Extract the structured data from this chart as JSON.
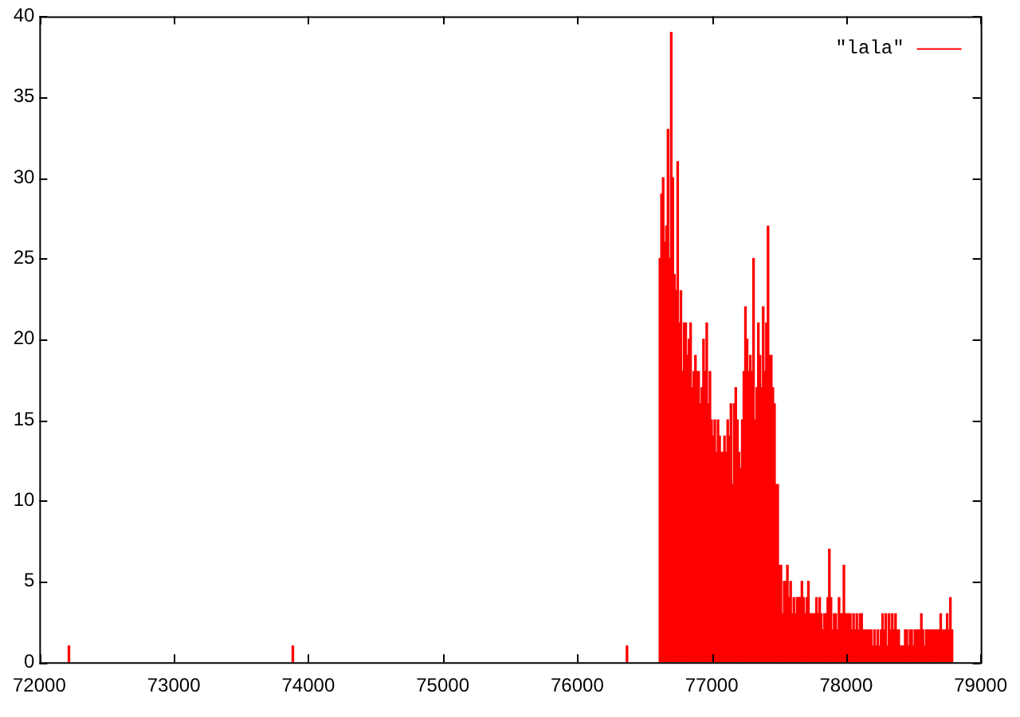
{
  "chart_data": {
    "type": "bar",
    "legend": "top right",
    "grid": false,
    "xlim": [
      72000,
      79000
    ],
    "xticks": [
      72000,
      73000,
      74000,
      75000,
      76000,
      77000,
      78000,
      79000
    ],
    "ylim": [
      0,
      40
    ],
    "yticks": [
      0,
      5,
      10,
      15,
      20,
      25,
      30,
      35,
      40
    ],
    "series": [
      {
        "name": "\"lala\"",
        "color": "#ff0000",
        "x": [
          72220,
          73885,
          76370,
          76615,
          76627,
          76639,
          76651,
          76663,
          76675,
          76687,
          76699,
          76711,
          76723,
          76735,
          76747,
          76759,
          76771,
          76783,
          76795,
          76807,
          76819,
          76831,
          76843,
          76855,
          76867,
          76879,
          76891,
          76903,
          76915,
          76927,
          76939,
          76951,
          76963,
          76975,
          76987,
          76999,
          77011,
          77023,
          77035,
          77047,
          77059,
          77071,
          77083,
          77095,
          77107,
          77119,
          77131,
          77143,
          77155,
          77167,
          77179,
          77191,
          77203,
          77215,
          77227,
          77239,
          77251,
          77263,
          77275,
          77287,
          77299,
          77311,
          77323,
          77335,
          77347,
          77359,
          77371,
          77383,
          77395,
          77407,
          77419,
          77431,
          77443,
          77455,
          77467,
          77479,
          77491,
          77503,
          77515,
          77527,
          77539,
          77551,
          77563,
          77575,
          77587,
          77599,
          77611,
          77623,
          77635,
          77647,
          77659,
          77671,
          77683,
          77695,
          77707,
          77719,
          77731,
          77743,
          77755,
          77767,
          77779,
          77791,
          77803,
          77815,
          77827,
          77839,
          77851,
          77863,
          77875,
          77887,
          77899,
          77911,
          77923,
          77935,
          77947,
          77959,
          77971,
          77983,
          77995,
          78007,
          78019,
          78031,
          78043,
          78055,
          78067,
          78079,
          78091,
          78103,
          78115,
          78127,
          78139,
          78151,
          78163,
          78175,
          78187,
          78199,
          78211,
          78223,
          78235,
          78247,
          78259,
          78271,
          78283,
          78295,
          78307,
          78319,
          78331,
          78343,
          78355,
          78367,
          78379,
          78391,
          78403,
          78415,
          78427,
          78439,
          78451,
          78463,
          78475,
          78487,
          78499,
          78511,
          78523,
          78535,
          78547,
          78559,
          78571,
          78583,
          78595,
          78607,
          78619,
          78631,
          78643,
          78655,
          78667,
          78679,
          78691,
          78703,
          78715,
          78727,
          78739,
          78751,
          78763,
          78775,
          78787
        ],
        "values": [
          1,
          1,
          1,
          25,
          29,
          30,
          26,
          27,
          33,
          25,
          39,
          30,
          24,
          23,
          31,
          21,
          23,
          18,
          21,
          21,
          19,
          20,
          21,
          17,
          18,
          19,
          18,
          18,
          16,
          17,
          20,
          18,
          21,
          16,
          18,
          15,
          14,
          15,
          13,
          15,
          14,
          13,
          13,
          14,
          13,
          15,
          14,
          16,
          11,
          16,
          17,
          15,
          13,
          12,
          15,
          18,
          22,
          20,
          18,
          19,
          18,
          25,
          15,
          17,
          21,
          19,
          17,
          22,
          18,
          21,
          27,
          19,
          19,
          17,
          16,
          11,
          11,
          6,
          6,
          3,
          5,
          5,
          6,
          4,
          5,
          3,
          4,
          3,
          4,
          4,
          4,
          5,
          4,
          3,
          4,
          5,
          3,
          3,
          3,
          3,
          4,
          3,
          4,
          3,
          2,
          3,
          3,
          4,
          7,
          4,
          2,
          3,
          3,
          2,
          4,
          3,
          3,
          6,
          3,
          3,
          3,
          3,
          2,
          3,
          2,
          3,
          2,
          3,
          3,
          2,
          2,
          2,
          2,
          2,
          2,
          1,
          2,
          1,
          2,
          1,
          2,
          3,
          2,
          3,
          1,
          3,
          2,
          3,
          2,
          3,
          2,
          2,
          1,
          1,
          1,
          2,
          2,
          1,
          2,
          2,
          1,
          2,
          2,
          2,
          2,
          3,
          2,
          1,
          2,
          2,
          2,
          2,
          2,
          2,
          2,
          2,
          2,
          3,
          2,
          2,
          2,
          3,
          2,
          4,
          2
        ]
      }
    ]
  }
}
